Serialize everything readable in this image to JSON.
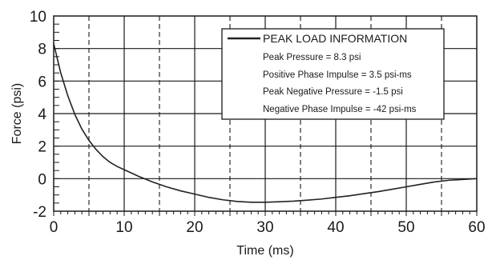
{
  "chart_data": {
    "type": "line",
    "xlabel": "Time (ms)",
    "ylabel": "Force (psi)",
    "xlim": [
      0,
      60
    ],
    "ylim": [
      -2,
      10
    ],
    "x_ticks": [
      0,
      10,
      20,
      30,
      40,
      50,
      60
    ],
    "y_ticks": [
      -2,
      0,
      2,
      4,
      6,
      8,
      10
    ],
    "x_tick_labels": [
      "0",
      "10",
      "20",
      "30",
      "40",
      "50",
      "60"
    ],
    "y_tick_labels": [
      "-2",
      "0",
      "2",
      "4",
      "6",
      "8",
      "10"
    ],
    "solid_grid_x": [
      10,
      20,
      30,
      40,
      50
    ],
    "dashed_grid_x": [
      5,
      15,
      25,
      35,
      45,
      55
    ],
    "solid_grid_y": [
      0,
      2,
      4,
      6,
      8
    ],
    "grid": true,
    "legend_position": "top-right",
    "series": [
      {
        "name": "PEAK LOAD INFORMATION",
        "color": "#222222",
        "x": [
          0,
          1,
          2,
          3,
          4,
          5,
          6,
          7,
          8,
          9,
          10,
          12,
          14,
          16,
          18,
          20,
          22,
          24,
          26,
          28,
          30,
          32,
          34,
          36,
          38,
          40,
          42,
          44,
          46,
          48,
          50,
          52,
          54,
          56,
          58,
          60
        ],
        "y": [
          8.3,
          6.5,
          5.1,
          3.95,
          3.05,
          2.35,
          1.8,
          1.35,
          1.0,
          0.75,
          0.55,
          0.15,
          -0.2,
          -0.5,
          -0.75,
          -0.95,
          -1.15,
          -1.3,
          -1.4,
          -1.45,
          -1.45,
          -1.42,
          -1.38,
          -1.32,
          -1.25,
          -1.15,
          -1.05,
          -0.92,
          -0.8,
          -0.65,
          -0.5,
          -0.35,
          -0.2,
          -0.1,
          -0.05,
          0
        ]
      }
    ]
  },
  "legend": {
    "title": "PEAK LOAD INFORMATION",
    "lines": [
      "Peak Pressure = 8.3 psi",
      "Positive Phase Impulse = 3.5 psi-ms",
      "Peak Negative Pressure = -1.5 psi",
      "Negative Phase Impulse = -42 psi-ms"
    ]
  },
  "colors": {
    "curve": "#222222",
    "grid": "#1a1a1a",
    "frame": "#1a1a1a",
    "legend_bg": "#ffffff"
  }
}
